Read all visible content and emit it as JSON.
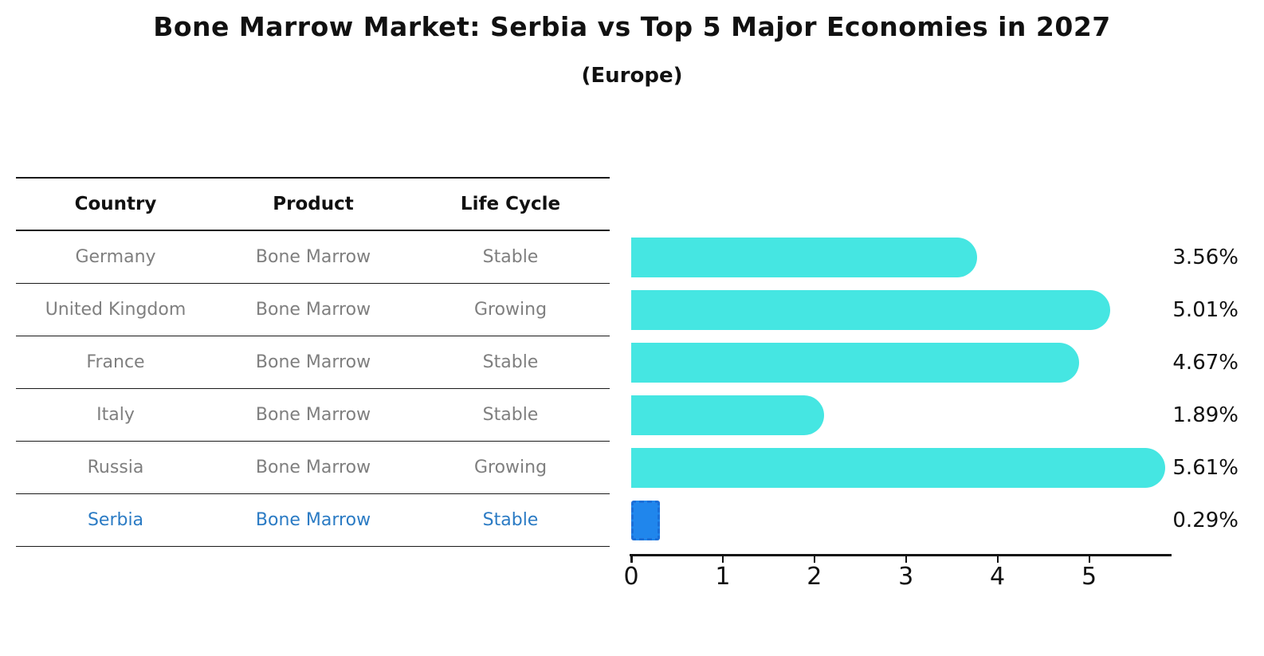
{
  "title": "Bone Marrow Market: Serbia vs Top 5 Major Economies in 2027",
  "subtitle": "(Europe)",
  "table": {
    "headers": [
      "Country",
      "Product",
      "Life Cycle"
    ],
    "rows": [
      {
        "country": "Germany",
        "product": "Bone Marrow",
        "life_cycle": "Stable"
      },
      {
        "country": "United Kingdom",
        "product": "Bone Marrow",
        "life_cycle": "Growing"
      },
      {
        "country": "France",
        "product": "Bone Marrow",
        "life_cycle": "Stable"
      },
      {
        "country": "Italy",
        "product": "Bone Marrow",
        "life_cycle": "Stable"
      },
      {
        "country": "Russia",
        "product": "Bone Marrow",
        "life_cycle": "Growing"
      },
      {
        "country": "Serbia",
        "product": "Bone Marrow",
        "life_cycle": "Stable"
      }
    ],
    "highlighted_country": "Serbia"
  },
  "chart_data": {
    "type": "bar",
    "orientation": "horizontal",
    "title": "Bone Marrow Market: Serbia vs Top 5 Major Economies in 2027",
    "subtitle": "(Europe)",
    "categories": [
      "Germany",
      "United Kingdom",
      "France",
      "Italy",
      "Russia",
      "Serbia"
    ],
    "values": [
      3.56,
      5.01,
      4.67,
      1.89,
      5.61,
      0.29
    ],
    "value_labels": [
      "3.56%",
      "5.01%",
      "4.67%",
      "1.89%",
      "5.61%",
      "0.29%"
    ],
    "xlabel": "",
    "ylabel": "",
    "xlim": [
      0,
      5.9
    ],
    "xticks": [
      0,
      1,
      2,
      3,
      4,
      5
    ],
    "grid": false,
    "legend": false,
    "highlight_index": 5,
    "colors": {
      "bar": "#45e6e2",
      "highlight_bar": "#2086ec",
      "highlight_border": "#1b6fd8",
      "highlight_text": "#2b7bc4",
      "row_text": "#7f7f7f",
      "header_text": "#111111",
      "value_text": "#111111",
      "axis": "#111111"
    }
  }
}
